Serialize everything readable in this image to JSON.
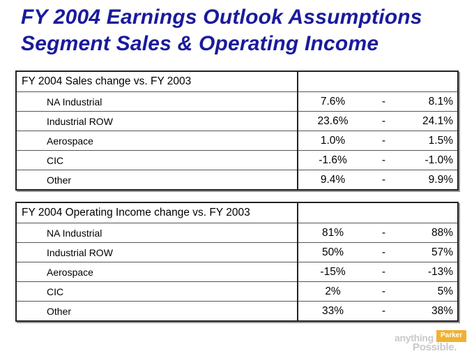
{
  "title": {
    "line1": "FY 2004  Earnings Outlook Assumptions",
    "line2": "Segment Sales & Operating Income"
  },
  "sales_table": {
    "header": "FY 2004 Sales change vs. FY 2003",
    "rows": [
      {
        "label": "NA Industrial",
        "low": "7.6%",
        "sep": "-",
        "high": "8.1%"
      },
      {
        "label": "Industrial ROW",
        "low": "23.6%",
        "sep": "-",
        "high": "24.1%"
      },
      {
        "label": "Aerospace",
        "low": "1.0%",
        "sep": "-",
        "high": "1.5%"
      },
      {
        "label": "CIC",
        "low": "-1.6%",
        "sep": "-",
        "high": "-1.0%"
      },
      {
        "label": "Other",
        "low": "9.4%",
        "sep": "-",
        "high": "9.9%"
      }
    ]
  },
  "income_table": {
    "header": "FY 2004 Operating Income change vs. FY 2003",
    "rows": [
      {
        "label": "NA Industrial",
        "low": "81%",
        "sep": "-",
        "high": "88%"
      },
      {
        "label": "Industrial ROW",
        "low": "50%",
        "sep": "-",
        "high": "57%"
      },
      {
        "label": "Aerospace",
        "low": "-15%",
        "sep": "-",
        "high": "-13%"
      },
      {
        "label": "CIC",
        "low": "2%",
        "sep": "-",
        "high": "5%"
      },
      {
        "label": "Other",
        "low": "33%",
        "sep": "-",
        "high": "38%"
      }
    ]
  },
  "logo": {
    "anything": "anything",
    "parker": "Parker",
    "possible": "Possible."
  }
}
